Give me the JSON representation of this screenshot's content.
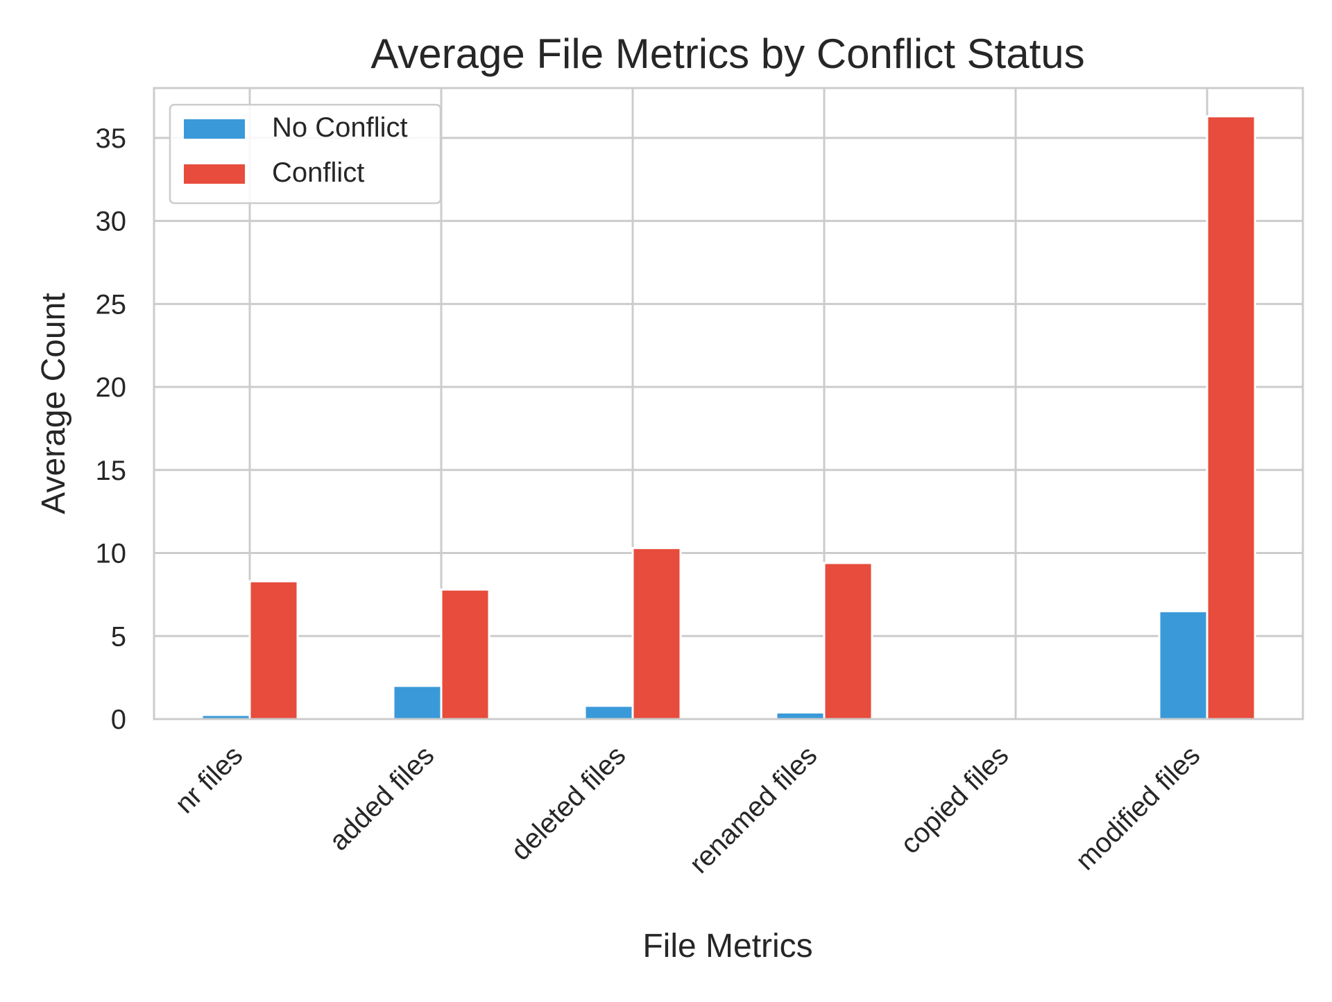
{
  "chart_data": {
    "type": "bar",
    "title": "Average File Metrics by Conflict Status",
    "xlabel": "File Metrics",
    "ylabel": "Average Count",
    "categories": [
      "nr files",
      "added files",
      "deleted files",
      "renamed files",
      "copied files",
      "modified files"
    ],
    "series": [
      {
        "name": "No Conflict",
        "color": "#3a9ad9",
        "values": [
          0.25,
          2.0,
          0.8,
          0.4,
          0.0,
          6.5
        ]
      },
      {
        "name": "Conflict",
        "color": "#e74c3c",
        "values": [
          8.3,
          7.8,
          10.3,
          9.4,
          0.0,
          36.3
        ]
      }
    ],
    "ylim": [
      0,
      38
    ],
    "yticks": [
      0,
      5,
      10,
      15,
      20,
      25,
      30,
      35
    ],
    "grid": true,
    "legend_position": "top-left"
  }
}
